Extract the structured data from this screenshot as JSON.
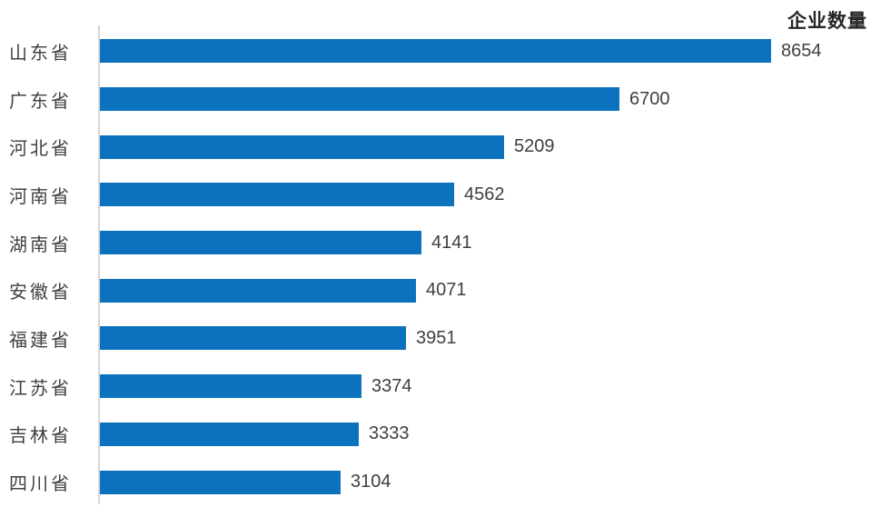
{
  "chart": {
    "title": "企业数量",
    "colors": {
      "bar": "#0d72bd",
      "axis_line": "#d6d6d6",
      "value_text": "#404040",
      "label_text": "#404040",
      "title_text": "#262626"
    }
  },
  "chart_data": {
    "type": "bar",
    "orientation": "horizontal",
    "title": "企业数量",
    "categories": [
      "山东省",
      "广东省",
      "河北省",
      "河南省",
      "湖南省",
      "安徽省",
      "福建省",
      "江苏省",
      "吉林省",
      "四川省"
    ],
    "values": [
      8654,
      6700,
      5209,
      4562,
      4141,
      4071,
      3951,
      3374,
      3333,
      3104
    ],
    "xlabel": "",
    "ylabel": "",
    "xlim": [
      0,
      9000
    ],
    "grid": false,
    "value_labels_shown": true,
    "sort_order": "descending",
    "legend_position": "top-right"
  }
}
